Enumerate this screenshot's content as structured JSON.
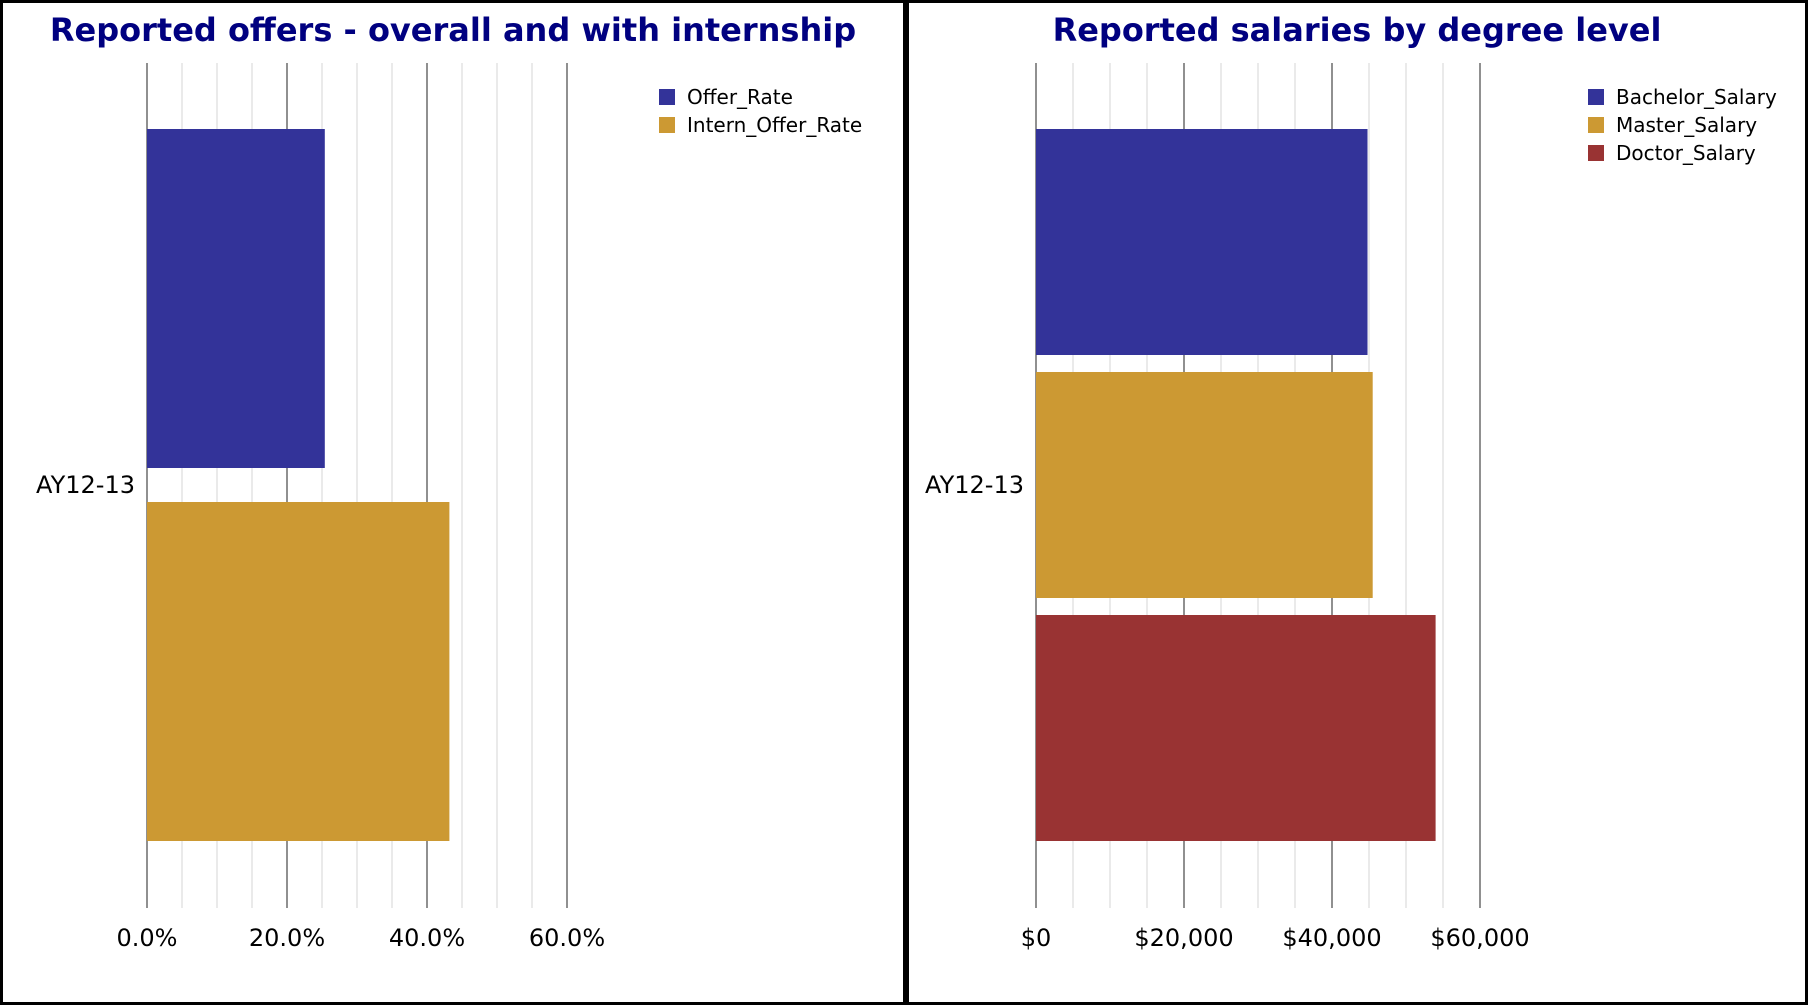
{
  "chart_data": [
    {
      "type": "bar",
      "orientation": "horizontal",
      "title": "Reported offers - overall and with internship",
      "categories": [
        "AY12-13"
      ],
      "series": [
        {
          "name": "Offer_Rate",
          "color": "#333399",
          "values": [
            0.254
          ]
        },
        {
          "name": "Intern_Offer_Rate",
          "color": "#CC9933",
          "values": [
            0.432
          ]
        }
      ],
      "xlim": [
        0,
        0.6
      ],
      "major_ticks": [
        0,
        0.2,
        0.4,
        0.6
      ],
      "tick_labels": [
        "0.0%",
        "20.0%",
        "40.0%",
        "60.0%"
      ],
      "minor_ticks_per_major": 4,
      "grid": true,
      "legend_position": "top-right"
    },
    {
      "type": "bar",
      "orientation": "horizontal",
      "title": "Reported salaries by degree level",
      "categories": [
        "AY12-13"
      ],
      "series": [
        {
          "name": "Bachelor_Salary",
          "color": "#333399",
          "values": [
            44800
          ]
        },
        {
          "name": "Master_Salary",
          "color": "#CC9933",
          "values": [
            45500
          ]
        },
        {
          "name": "Doctor_Salary",
          "color": "#993333",
          "values": [
            54000
          ]
        }
      ],
      "xlim": [
        0,
        60000
      ],
      "major_ticks": [
        0,
        20000,
        40000,
        60000
      ],
      "tick_labels": [
        "$0",
        "$20,000",
        "$40,000",
        "$60,000"
      ],
      "minor_ticks_per_major": 4,
      "grid": true,
      "legend_position": "top-right"
    }
  ]
}
